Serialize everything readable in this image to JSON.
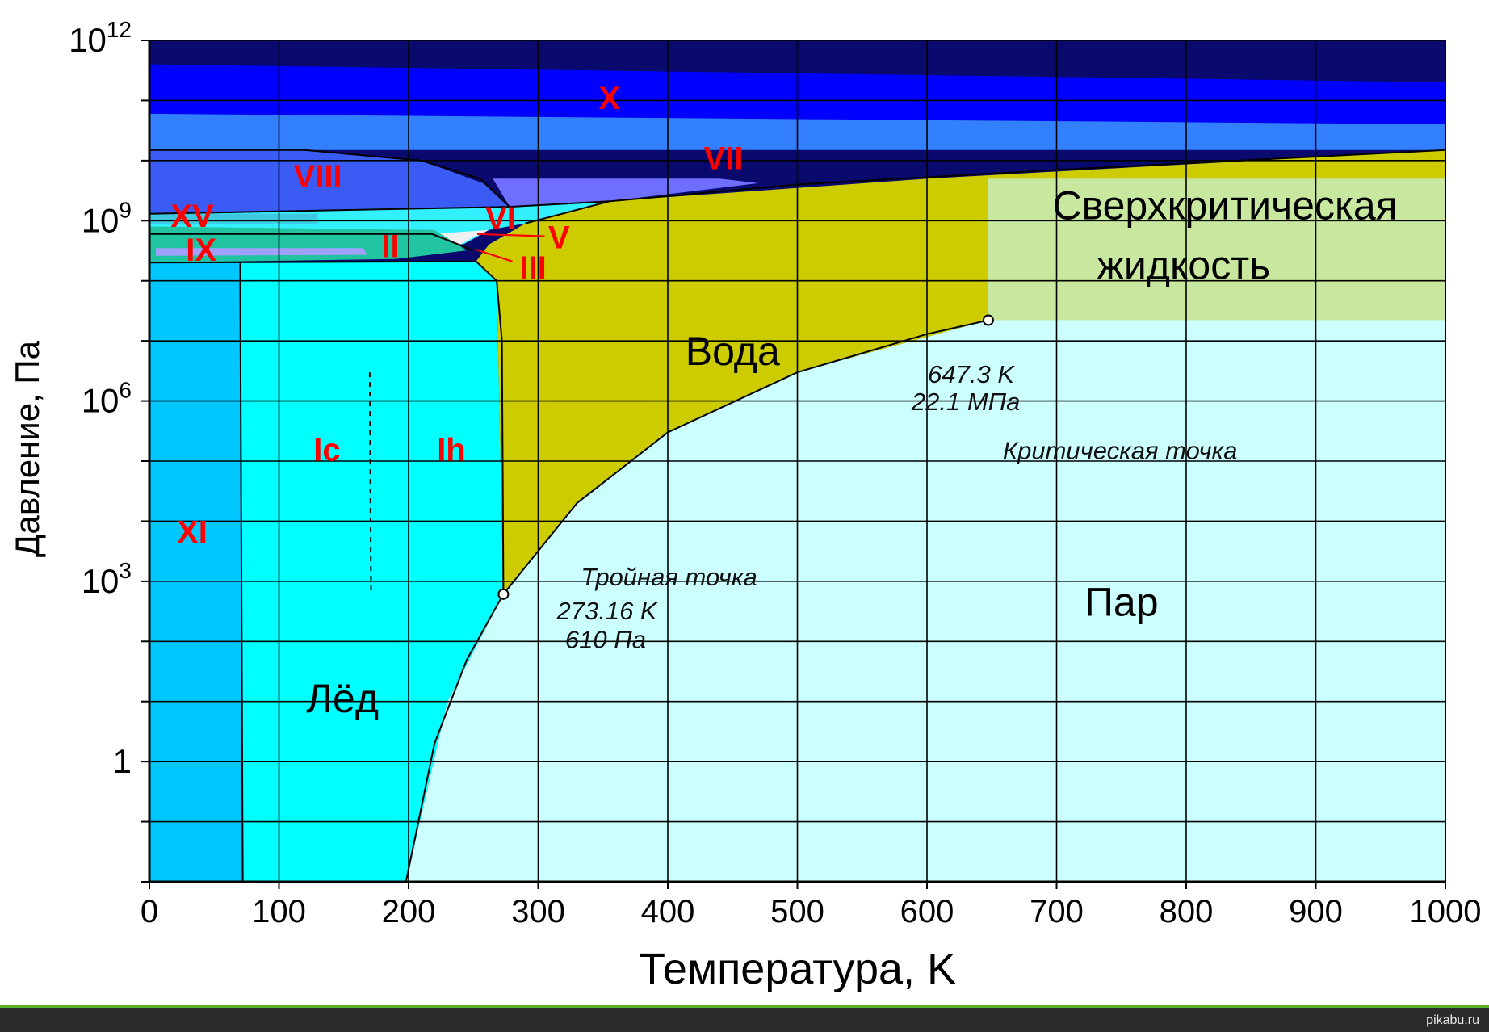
{
  "chart_data": {
    "type": "area",
    "title": "",
    "xlabel": "Температура, K",
    "ylabel": "Давление, Па",
    "x_scale": "linear",
    "y_scale": "log",
    "xlim": [
      0,
      1000
    ],
    "ylim": [
      0.01,
      1000000000000
    ],
    "x_ticks": [
      0,
      100,
      200,
      300,
      400,
      500,
      600,
      700,
      800,
      900,
      1000
    ],
    "x_tick_labels": [
      "0",
      "100",
      "200",
      "300",
      "400",
      "500",
      "600",
      "700",
      "800",
      "900",
      "1000"
    ],
    "y_ticks": [
      1,
      1000,
      1000000,
      1000000000,
      1000000000000
    ],
    "y_tick_labels": [
      {
        "base": "1",
        "exp": ""
      },
      {
        "base": "10",
        "exp": "3"
      },
      {
        "base": "10",
        "exp": "6"
      },
      {
        "base": "10",
        "exp": "9"
      },
      {
        "base": "10",
        "exp": "12"
      }
    ],
    "grid": true,
    "regions": [
      {
        "name": "X",
        "color": "#0000ff",
        "points": [
          [
            0,
            400000000000
          ],
          [
            1000,
            200000000000
          ],
          [
            1000,
            40000000000
          ],
          [
            0,
            60000000000
          ]
        ]
      },
      {
        "name": "VII",
        "color": "#3380ff",
        "points": [
          [
            0,
            60000000000
          ],
          [
            1000,
            40000000000
          ],
          [
            1000,
            15000000000
          ],
          [
            0,
            15000000000
          ]
        ]
      },
      {
        "name": "VIII",
        "color": "#3a5cf5",
        "points": [
          [
            0,
            15000000000
          ],
          [
            120,
            15000000000
          ],
          [
            210,
            10000000000
          ],
          [
            260,
            4000000000
          ],
          [
            278,
            1700000000
          ],
          [
            0,
            1300000000
          ]
        ]
      },
      {
        "name": "",
        "color": "#6e6eff",
        "points": [
          [
            278,
            1700000000
          ],
          [
            265,
            5000000000
          ],
          [
            440,
            5000000000
          ],
          [
            470,
            4200000000
          ],
          [
            355,
            2100000000
          ]
        ]
      },
      {
        "name": "VI",
        "color": "#33f0ff",
        "points": [
          [
            0,
            1300000000
          ],
          [
            278,
            1700000000
          ],
          [
            355,
            2100000000
          ],
          [
            290,
            900000000
          ],
          [
            262,
            700000000
          ],
          [
            250,
            500000000
          ],
          [
            242,
            400000000
          ],
          [
            220,
            600000000
          ],
          [
            0,
            600000000
          ]
        ]
      },
      {
        "name": "XV",
        "color": "#40c8e0",
        "points": [
          [
            0,
            1300000000
          ],
          [
            130,
            1300000000
          ],
          [
            130,
            900000000
          ],
          [
            0,
            900000000
          ]
        ]
      },
      {
        "name": "V",
        "color": "#f0f0f0",
        "points": [
          [
            218,
            600000000
          ],
          [
            262,
            700000000
          ],
          [
            248,
            500000000
          ],
          [
            240,
            400000000
          ]
        ]
      },
      {
        "name": "II",
        "color": "#20c4a0",
        "points": [
          [
            0,
            800000000
          ],
          [
            220,
            700000000
          ],
          [
            245,
            320000000
          ],
          [
            190,
            230000000
          ],
          [
            0,
            200000000
          ]
        ]
      },
      {
        "name": "IX",
        "color": "#a0a0ff",
        "points": [
          [
            5,
            350000000
          ],
          [
            165,
            350000000
          ],
          [
            168,
            270000000
          ],
          [
            5,
            260000000
          ]
        ]
      },
      {
        "name": "XI",
        "color": "#00c8ff",
        "points": [
          [
            0,
            200000000
          ],
          [
            70,
            200000000
          ],
          [
            72,
            0.01
          ],
          [
            0,
            0.01
          ]
        ]
      },
      {
        "name": "Ih",
        "color": "#00ffff",
        "points": [
          [
            70,
            200000000
          ],
          [
            252,
            210000000
          ],
          [
            268,
            100000000
          ],
          [
            273.16,
            610
          ],
          [
            230,
            10
          ],
          [
            198,
            0.01
          ],
          [
            72,
            0.01
          ]
        ]
      },
      {
        "name": "Вода",
        "color": "#cccc00",
        "points": [
          [
            273.16,
            610
          ],
          [
            268,
            100000000
          ],
          [
            252,
            210000000
          ],
          [
            262,
            400000000
          ],
          [
            290,
            900000000
          ],
          [
            355,
            2100000000
          ],
          [
            600,
            5000000000
          ],
          [
            1000,
            15000000000
          ],
          [
            1000,
            5000000000
          ],
          [
            647.3,
            22100000
          ],
          [
            500,
            3000000
          ],
          [
            400,
            300000
          ],
          [
            330,
            20000
          ]
        ]
      },
      {
        "name": "Сверхкритическая жидкость",
        "color": "#c8e8a0",
        "points": [
          [
            647.3,
            22100000
          ],
          [
            647.3,
            5000000000
          ],
          [
            1000,
            5000000000
          ],
          [
            1000,
            22100000
          ]
        ]
      },
      {
        "name": "Пар",
        "color": "#ccffff",
        "points": [
          [
            198,
            0.01
          ],
          [
            230,
            10
          ],
          [
            273.16,
            610
          ],
          [
            330,
            20000
          ],
          [
            400,
            300000
          ],
          [
            500,
            3000000
          ],
          [
            647.3,
            22100000
          ],
          [
            1000,
            22100000
          ],
          [
            1000,
            0.01
          ]
        ]
      }
    ],
    "boundary_lines": [
      {
        "name": "sublimation-curve",
        "points": [
          [
            198,
            0.01
          ],
          [
            220,
            2
          ],
          [
            245,
            50
          ],
          [
            273.16,
            610
          ]
        ]
      },
      {
        "name": "melting-curve",
        "points": [
          [
            273.16,
            610
          ],
          [
            272,
            10000000
          ],
          [
            268,
            100000000
          ],
          [
            252,
            210000000
          ]
        ]
      },
      {
        "name": "vaporization-curve",
        "points": [
          [
            273.16,
            610
          ],
          [
            330,
            20000
          ],
          [
            400,
            300000
          ],
          [
            500,
            3000000
          ],
          [
            600,
            13000000
          ],
          [
            647.3,
            22100000
          ]
        ]
      },
      {
        "name": "ice-vii-liquid-curve",
        "points": [
          [
            290,
            900000000
          ],
          [
            355,
            2100000000
          ],
          [
            500,
            4000000000
          ],
          [
            700,
            7000000000
          ],
          [
            1000,
            15000000000
          ]
        ]
      },
      {
        "name": "ice-viii-vii-curve",
        "points": [
          [
            0,
            15000000000
          ],
          [
            120,
            15000000000
          ],
          [
            210,
            10000000000
          ],
          [
            255,
            5000000000
          ],
          [
            278,
            1700000000
          ]
        ]
      },
      {
        "name": "ice-vi-viii-curve",
        "points": [
          [
            0,
            1300000000
          ],
          [
            278,
            1700000000
          ],
          [
            355,
            2100000000
          ]
        ]
      },
      {
        "name": "ice-ii-upper-curve",
        "points": [
          [
            0,
            600000000
          ],
          [
            218,
            600000000
          ],
          [
            250,
            320000000
          ]
        ]
      },
      {
        "name": "ice-ii-lower-curve",
        "points": [
          [
            0,
            200000000
          ],
          [
            252,
            210000000
          ]
        ]
      },
      {
        "name": "ice-xi-ih-curve",
        "points": [
          [
            70,
            200000000
          ],
          [
            72,
            0.01
          ]
        ]
      },
      {
        "name": "ic-ih-dashed",
        "dashed": true,
        "points": [
          [
            170,
            3000000
          ],
          [
            171,
            600
          ]
        ]
      }
    ],
    "phase_labels": [
      {
        "text": "X",
        "x": 355,
        "y": 100000000000,
        "color": "#ff0000",
        "bold": true
      },
      {
        "text": "VII",
        "x": 443,
        "y": 10000000000,
        "color": "#ff0000",
        "bold": true
      },
      {
        "text": "VIII",
        "x": 130,
        "y": 5000000000,
        "color": "#ff0000",
        "bold": true
      },
      {
        "text": "XV",
        "x": 33,
        "y": 1100000000,
        "color": "#ff0000",
        "bold": true
      },
      {
        "text": "VI",
        "x": 271,
        "y": 1000000000,
        "color": "#ff0000",
        "bold": true
      },
      {
        "text": "IX",
        "x": 40,
        "y": 300000000,
        "color": "#ff0000",
        "bold": true
      },
      {
        "text": "II",
        "x": 186,
        "y": 340000000,
        "color": "#ff0000",
        "bold": true
      },
      {
        "text": "V",
        "x": 316,
        "y": 480000000,
        "color": "#ff0000",
        "bold": true
      },
      {
        "text": "III",
        "x": 296,
        "y": 150000000,
        "color": "#ff0000",
        "bold": true
      },
      {
        "text": "XI",
        "x": 33,
        "y": 6000,
        "color": "#ff0000",
        "bold": true
      },
      {
        "text": "Ic",
        "x": 137,
        "y": 140000,
        "color": "#ff0000",
        "bold": true
      },
      {
        "text": "Ih",
        "x": 233,
        "y": 140000,
        "color": "#ff0000",
        "bold": true
      },
      {
        "text": "Лёд",
        "x": 149,
        "y": 10,
        "color": "#000000",
        "bold": false
      },
      {
        "text": "Вода",
        "x": 450,
        "y": 6000000,
        "color": "#000000",
        "bold": false
      },
      {
        "text": "Пар",
        "x": 750,
        "y": 400,
        "color": "#000000",
        "bold": false
      },
      {
        "text": "Сверхкритическая",
        "x": 830,
        "y": 1600000000,
        "color": "#000000",
        "bold": false
      },
      {
        "text": "жидкость",
        "x": 798,
        "y": 160000000,
        "color": "#000000",
        "bold": false
      }
    ],
    "annotations": [
      {
        "text": "647.3 K",
        "x": 634,
        "y": 2600000,
        "italic": true
      },
      {
        "text": "22.1 МПа",
        "x": 630,
        "y": 900000,
        "italic": true
      },
      {
        "text": "Критическая точка",
        "x": 749,
        "y": 140000,
        "italic": true
      },
      {
        "text": "Тройная точка",
        "x": 401,
        "y": 1100,
        "italic": true
      },
      {
        "text": "273.16 K",
        "x": 353,
        "y": 300,
        "italic": true
      },
      {
        "text": "610 Па",
        "x": 352,
        "y": 100,
        "italic": true
      }
    ],
    "points": [
      {
        "name": "triple-point",
        "x": 273.16,
        "y": 610
      },
      {
        "name": "critical-point",
        "x": 647.3,
        "y": 22100000
      }
    ],
    "pointer_lines": [
      {
        "name": "pointer-v",
        "from": [
          253,
          600000000
        ],
        "to": [
          305,
          550000000
        ]
      },
      {
        "name": "pointer-iii",
        "from": [
          252,
          330000000
        ],
        "to": [
          280,
          210000000
        ]
      }
    ]
  },
  "footer": {
    "brand": "pikabu.ru"
  }
}
